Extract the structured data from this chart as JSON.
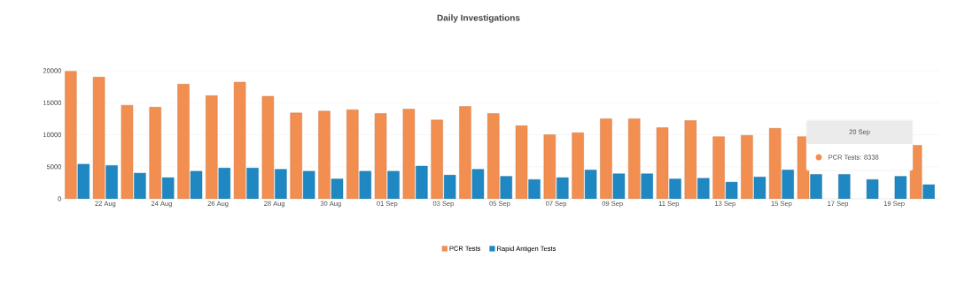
{
  "chart_data": {
    "type": "bar",
    "title": "Daily Investigations",
    "categories": [
      null,
      "22 Aug",
      null,
      "24 Aug",
      null,
      "26 Aug",
      null,
      "28 Aug",
      null,
      "30 Aug",
      null,
      "01 Sep",
      null,
      "03 Sep",
      null,
      "05 Sep",
      null,
      "07 Sep",
      null,
      "09 Sep",
      null,
      "11 Sep",
      null,
      "13 Sep",
      null,
      "15 Sep",
      null,
      "17 Sep",
      null,
      "19 Sep",
      null
    ],
    "series": [
      {
        "name": "PCR Tests",
        "color": "#f28e50",
        "values": [
          19900,
          19000,
          14600,
          14300,
          17900,
          16100,
          18200,
          16000,
          13400,
          13700,
          13900,
          13300,
          14000,
          12300,
          14400,
          13300,
          11400,
          10000,
          10300,
          12500,
          12500,
          11100,
          12200,
          9700,
          9900,
          11000,
          9700,
          null,
          null,
          null,
          8338
        ]
      },
      {
        "name": "Rapid Antigen Tests",
        "color": "#1f87c1",
        "values": [
          5400,
          5200,
          4000,
          3300,
          4300,
          4800,
          4800,
          4600,
          4300,
          3100,
          4300,
          4300,
          5100,
          3700,
          4600,
          3500,
          3000,
          3300,
          4500,
          3900,
          3900,
          3100,
          3200,
          2600,
          3400,
          4500,
          3800,
          3800,
          3000,
          3500,
          2200
        ]
      }
    ],
    "ylim": [
      0,
      20000
    ],
    "yticks": [
      0,
      5000,
      10000,
      15000,
      20000
    ],
    "grid": "y",
    "legend": "bottom",
    "annotations": [
      "20 Sep",
      "PCR Tests: 8338"
    ]
  }
}
